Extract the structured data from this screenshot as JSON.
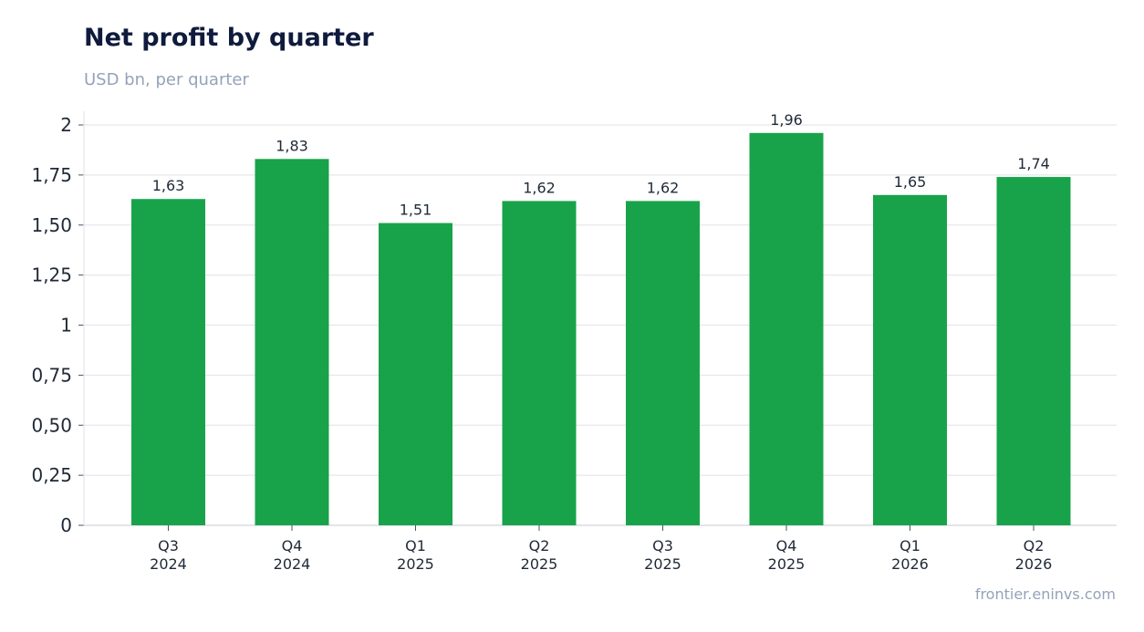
{
  "title": "Net profit by quarter",
  "subtitle": "USD bn, per quarter",
  "source": "frontier.eninvs.com",
  "chart_data": {
    "type": "bar",
    "title": "Net profit by quarter",
    "subtitle": "USD bn, per quarter",
    "categories": [
      [
        "Q3",
        "2024"
      ],
      [
        "Q4",
        "2024"
      ],
      [
        "Q1",
        "2025"
      ],
      [
        "Q2",
        "2025"
      ],
      [
        "Q3",
        "2025"
      ],
      [
        "Q4",
        "2025"
      ],
      [
        "Q1",
        "2026"
      ],
      [
        "Q2",
        "2026"
      ]
    ],
    "values": [
      1.63,
      1.83,
      1.51,
      1.62,
      1.62,
      1.96,
      1.65,
      1.74
    ],
    "data_labels": [
      "1,63",
      "1,83",
      "1,51",
      "1,62",
      "1,62",
      "1,96",
      "1,65",
      "1,74"
    ],
    "y_ticks": [
      0,
      0.25,
      0.5,
      0.75,
      1,
      1.25,
      1.5,
      1.75,
      2
    ],
    "y_tick_labels": [
      "0",
      "0,25",
      "0,50",
      "0,75",
      "1",
      "1,25",
      "1,50",
      "1,75",
      "2"
    ],
    "ylim": [
      0,
      2
    ],
    "grid": true,
    "legend": "none",
    "bar_color": "#18a34a",
    "grid_color": "#e5e7eb"
  }
}
